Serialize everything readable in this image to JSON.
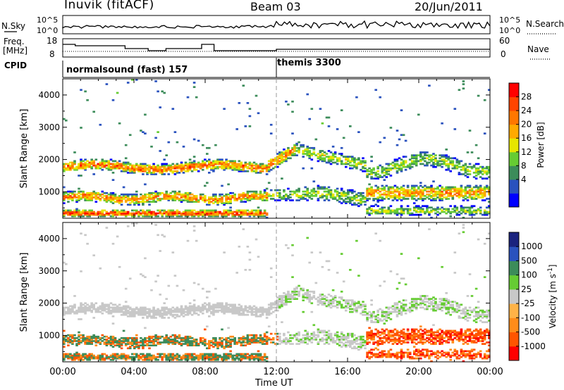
{
  "header": {
    "station": "Inuvik (fitACF)",
    "beam": "Beam 03",
    "date": "20/Jun/2011"
  },
  "nsky": {
    "label": "N.Sky",
    "y_top_tick": "10^5",
    "y_bottom_tick": "10^0",
    "right_top_tick": "10^5",
    "right_bottom_tick": "10^0",
    "right_label": "N.Search"
  },
  "freq": {
    "label_line1": "Freq.",
    "label_line2": "[MHz]",
    "y_top_tick": "18",
    "y_bottom_tick": "8",
    "right_top_tick": "60",
    "right_bottom_tick": "0",
    "right_label": "Nave"
  },
  "cpid": {
    "label": "CPID",
    "segments": [
      {
        "start_hour": 0,
        "label": "normalsound (fast) 157"
      },
      {
        "start_hour": 12,
        "label": "themis 3300"
      }
    ]
  },
  "colors": {
    "power_scale": [
      "#0000ff",
      "#2a52be",
      "#3c8c5a",
      "#66cc33",
      "#e6e600",
      "#ffaa00",
      "#ff7700",
      "#ff4400",
      "#ff0000"
    ],
    "velocity_scale": [
      "#ff0000",
      "#ff5500",
      "#ff8c1a",
      "#ffb347",
      "#c8c8c8",
      "#66cc33",
      "#3c8c5a",
      "#2a52be",
      "#1a237e"
    ]
  },
  "chart_data": [
    {
      "type": "heatmap",
      "panel": "power",
      "ylabel": "Slant Range [km]",
      "xlabel": "Time UT",
      "x_ticks": [
        "00:00",
        "04:00",
        "08:00",
        "12:00",
        "16:00",
        "20:00",
        "00:00"
      ],
      "x_range_hours": [
        0,
        24
      ],
      "y_ticks": [
        1000,
        2000,
        3000,
        4000
      ],
      "ylim": [
        180,
        4500
      ],
      "colorbar_label": "Power [dB]",
      "colorbar_ticks": [
        "28",
        "24",
        "20",
        "16",
        "12",
        "8",
        "4"
      ],
      "colorbar_range": [
        0,
        30
      ]
    },
    {
      "type": "heatmap",
      "panel": "velocity",
      "ylabel": "Slant Range [km]",
      "xlabel": "Time UT",
      "x_ticks": [
        "00:00",
        "04:00",
        "08:00",
        "12:00",
        "16:00",
        "20:00",
        "00:00"
      ],
      "x_range_hours": [
        0,
        24
      ],
      "y_ticks": [
        1000,
        2000,
        3000,
        4000
      ],
      "ylim": [
        180,
        4500
      ],
      "colorbar_label": "Velocity [m s-1]",
      "colorbar_ticks": [
        "1000",
        "500",
        "100",
        "25",
        "-25",
        "-100",
        "-500",
        "-1000"
      ]
    }
  ],
  "axis": {
    "ylabel": "Slant Range [km]",
    "xlabel": "Time UT",
    "power_label": "Power [dB]",
    "velocity_label": "Velocity  [m s",
    "velocity_exp": "-1",
    "velocity_close": "]"
  }
}
